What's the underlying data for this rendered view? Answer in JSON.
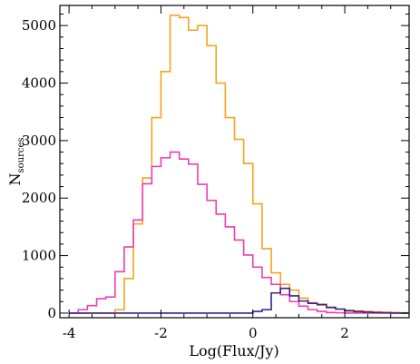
{
  "chart_data": {
    "type": "histogram",
    "xlabel": "Log(Flux/Jy)",
    "ylabel": {
      "main": "N",
      "subscript": "sources"
    },
    "xlim": [
      -4.2,
      3.4
    ],
    "ylim": [
      -80,
      5350
    ],
    "xticks": [
      -4,
      -2,
      0,
      2
    ],
    "yticks": [
      0,
      1000,
      2000,
      3000,
      4000,
      5000
    ],
    "bin_edges": [
      -4.0,
      -3.8,
      -3.6,
      -3.4,
      -3.2,
      -3.0,
      -2.8,
      -2.6,
      -2.4,
      -2.2,
      -2.0,
      -1.8,
      -1.6,
      -1.4,
      -1.2,
      -1.0,
      -0.8,
      -0.6,
      -0.4,
      -0.2,
      0.0,
      0.2,
      0.4,
      0.6,
      0.8,
      1.0,
      1.2,
      1.4,
      1.6,
      1.8,
      2.0,
      2.2,
      2.4,
      2.6,
      2.8,
      3.0,
      3.2,
      3.4
    ],
    "series": [
      {
        "color": "#F7A21B",
        "values": [
          0,
          0,
          0,
          0,
          0,
          60,
          600,
          1550,
          2350,
          3400,
          4200,
          5180,
          5140,
          4920,
          5000,
          4650,
          4000,
          3400,
          3020,
          2600,
          1900,
          1120,
          700,
          500,
          400,
          260,
          180,
          140,
          90,
          70,
          50,
          40,
          30,
          20,
          15,
          10,
          5
        ]
      },
      {
        "color": "#EE3DB2",
        "values": [
          0,
          60,
          130,
          250,
          280,
          720,
          1150,
          1620,
          2250,
          2550,
          2700,
          2800,
          2680,
          2590,
          2240,
          1960,
          1720,
          1500,
          1270,
          1010,
          800,
          620,
          500,
          320,
          200,
          120,
          60,
          30,
          10,
          5,
          0,
          0,
          0,
          0,
          0,
          0,
          0
        ]
      },
      {
        "color": "#3B1F8F",
        "values": [
          0,
          0,
          0,
          0,
          0,
          0,
          0,
          0,
          0,
          0,
          0,
          0,
          0,
          0,
          0,
          0,
          0,
          0,
          0,
          0,
          30,
          60,
          350,
          430,
          300,
          210,
          170,
          150,
          100,
          70,
          40,
          25,
          15,
          10,
          5,
          0,
          0
        ]
      }
    ]
  }
}
